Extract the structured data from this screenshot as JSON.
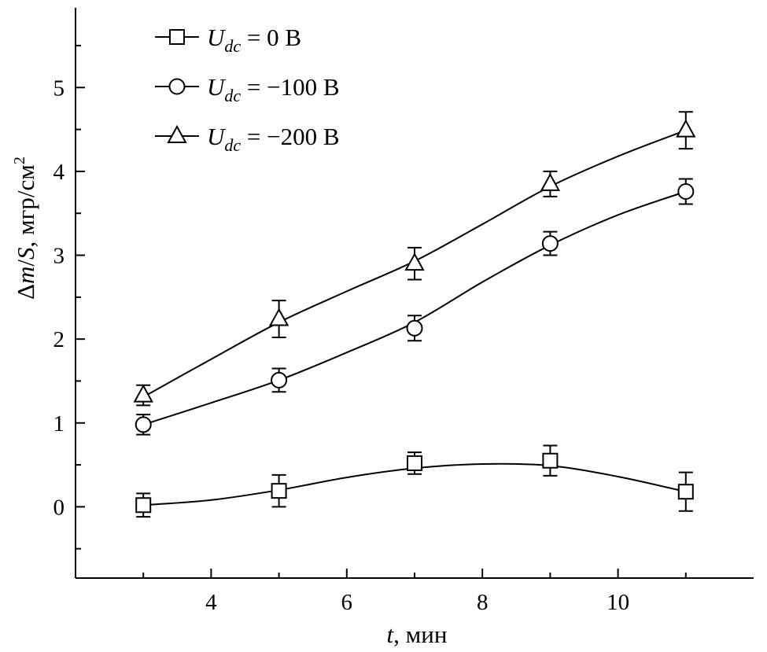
{
  "chart_data": {
    "type": "line",
    "title": "",
    "xlabel": {
      "var": "t",
      "rest": ", мин"
    },
    "ylabel": {
      "delta": "Δ",
      "m": "m",
      "slash": "/",
      "S": "S",
      "rest": ", мгр/см",
      "sup": "2"
    },
    "xlim": [
      2.0,
      12.0
    ],
    "ylim": [
      -0.85,
      5.95
    ],
    "x_ticks": [
      4,
      6,
      8,
      10
    ],
    "y_ticks": [
      0,
      1,
      2,
      3,
      4,
      5
    ],
    "grid": false,
    "legend_position": "top-left",
    "series": [
      {
        "name": "U_dc = 0 В",
        "label": {
          "var": "U",
          "sub": "dc",
          "rest": " = 0 В"
        },
        "marker": "square",
        "x": [
          3,
          5,
          7,
          9,
          11
        ],
        "y": [
          0.02,
          0.19,
          0.52,
          0.55,
          0.18
        ],
        "err": [
          0.14,
          0.19,
          0.13,
          0.18,
          0.23
        ],
        "curve": {
          "x": [
            3,
            4,
            5,
            6,
            7,
            8,
            9,
            10,
            11
          ],
          "y": [
            0.02,
            0.08,
            0.2,
            0.35,
            0.46,
            0.51,
            0.49,
            0.36,
            0.18
          ]
        }
      },
      {
        "name": "U_dc = −100 В",
        "label": {
          "var": "U",
          "sub": "dc",
          "rest": " = −100 В"
        },
        "marker": "circle",
        "x": [
          3,
          5,
          7,
          9,
          11
        ],
        "y": [
          0.98,
          1.51,
          2.13,
          3.14,
          3.76
        ],
        "err": [
          0.12,
          0.14,
          0.15,
          0.14,
          0.15
        ],
        "curve": {
          "x": [
            3,
            4,
            5,
            6,
            7,
            8,
            9,
            10,
            11
          ],
          "y": [
            0.98,
            1.24,
            1.51,
            1.84,
            2.2,
            2.68,
            3.12,
            3.48,
            3.76
          ]
        }
      },
      {
        "name": "U_dc = −200 В",
        "label": {
          "var": "U",
          "sub": "dc",
          "rest": " = −200 В"
        },
        "marker": "triangle",
        "x": [
          3,
          5,
          7,
          9,
          11
        ],
        "y": [
          1.33,
          2.24,
          2.9,
          3.85,
          4.49
        ],
        "err": [
          0.12,
          0.22,
          0.19,
          0.15,
          0.22
        ],
        "curve": {
          "x": [
            3,
            4,
            5,
            6,
            7,
            8,
            9,
            10,
            11
          ],
          "y": [
            1.31,
            1.76,
            2.2,
            2.57,
            2.93,
            3.37,
            3.82,
            4.18,
            4.49
          ]
        }
      }
    ]
  }
}
